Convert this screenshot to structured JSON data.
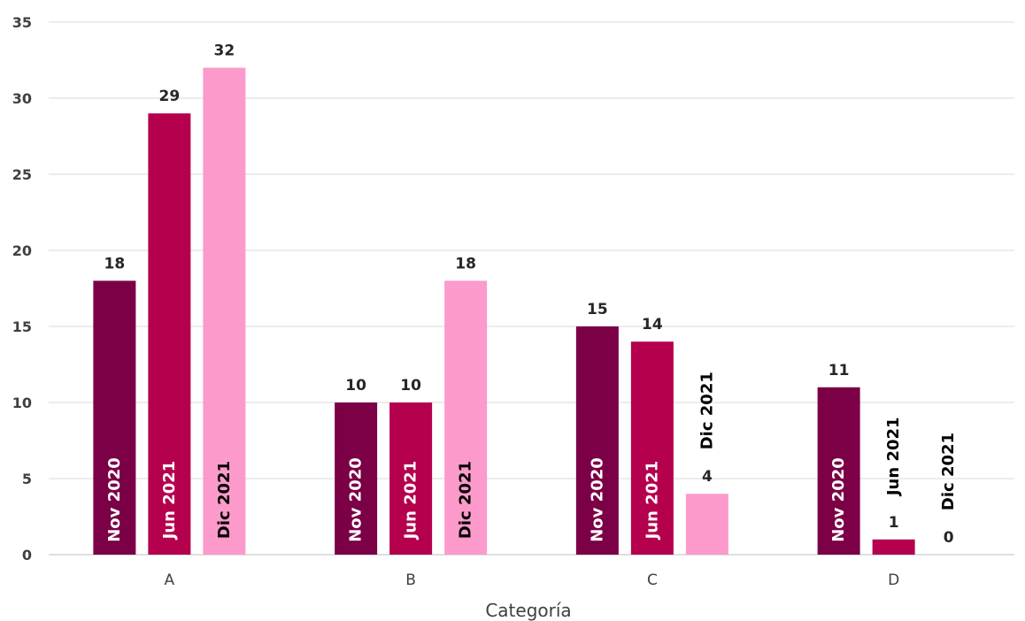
{
  "chart_data": {
    "type": "bar",
    "title": "",
    "xlabel": "Categoría",
    "ylabel": "",
    "ylim": [
      0,
      35
    ],
    "yticks": [
      0,
      5,
      10,
      15,
      20,
      25,
      30,
      35
    ],
    "grid": true,
    "legend": "none",
    "categories": [
      "A",
      "B",
      "C",
      "D"
    ],
    "series": [
      {
        "name": "Nov 2020",
        "color": "#7b0046",
        "values": [
          18,
          10,
          15,
          11
        ]
      },
      {
        "name": "Jun 2021",
        "color": "#b5004d",
        "values": [
          29,
          10,
          14,
          1
        ]
      },
      {
        "name": "Dic 2021",
        "color": "#fb9acb",
        "values": [
          32,
          18,
          4,
          0
        ]
      }
    ]
  }
}
